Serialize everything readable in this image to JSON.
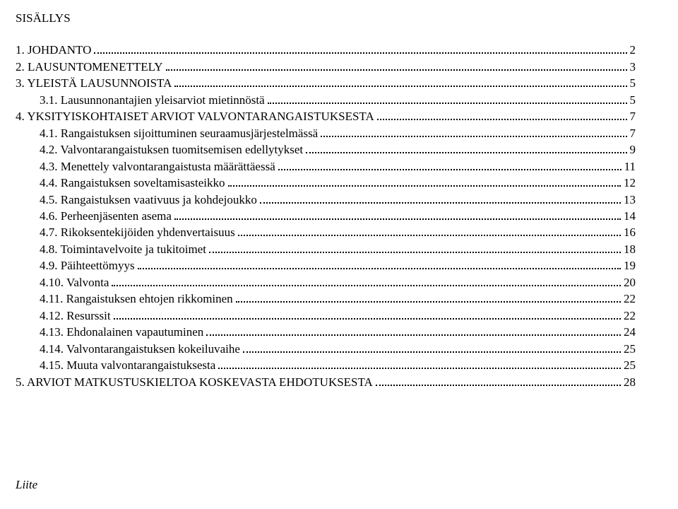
{
  "title": "SISÄLLYS",
  "footer": "Liite",
  "toc": [
    {
      "indent": 0,
      "label": "1. JOHDANTO",
      "page": "2"
    },
    {
      "indent": 0,
      "label": "2. LAUSUNTOMENETTELY",
      "page": "3"
    },
    {
      "indent": 0,
      "label": "3. YLEISTÄ LAUSUNNOISTA",
      "page": "5"
    },
    {
      "indent": 1,
      "label": "3.1. Lausunnonantajien yleisarviot mietinnöstä",
      "page": "5"
    },
    {
      "indent": 0,
      "label": "4. YKSITYISKOHTAISET ARVIOT VALVONTARANGAISTUKSESTA",
      "page": "7"
    },
    {
      "indent": 1,
      "label": "4.1. Rangaistuksen sijoittuminen seuraamusjärjestelmässä",
      "page": "7"
    },
    {
      "indent": 1,
      "label": "4.2. Valvontarangaistuksen tuomitsemisen edellytykset",
      "page": "9"
    },
    {
      "indent": 1,
      "label": "4.3. Menettely valvontarangaistusta määrättäessä",
      "page": "11"
    },
    {
      "indent": 1,
      "label": "4.4. Rangaistuksen soveltamisasteikko",
      "page": "12"
    },
    {
      "indent": 1,
      "label": "4.5. Rangaistuksen vaativuus ja kohdejoukko",
      "page": "13"
    },
    {
      "indent": 1,
      "label": "4.6. Perheenjäsenten asema",
      "page": "14"
    },
    {
      "indent": 1,
      "label": "4.7. Rikoksentekijöiden yhdenvertaisuus",
      "page": "16"
    },
    {
      "indent": 1,
      "label": "4.8. Toimintavelvoite ja tukitoimet",
      "page": "18"
    },
    {
      "indent": 1,
      "label": "4.9. Päihteettömyys",
      "page": "19"
    },
    {
      "indent": 1,
      "label": "4.10. Valvonta",
      "page": "20"
    },
    {
      "indent": 1,
      "label": "4.11. Rangaistuksen ehtojen rikkominen",
      "page": "22"
    },
    {
      "indent": 1,
      "label": "4.12. Resurssit",
      "page": "22"
    },
    {
      "indent": 1,
      "label": "4.13. Ehdonalainen vapautuminen",
      "page": "24"
    },
    {
      "indent": 1,
      "label": "4.14. Valvontarangaistuksen kokeiluvaihe",
      "page": "25"
    },
    {
      "indent": 1,
      "label": "4.15. Muuta valvontarangaistuksesta",
      "page": "25"
    },
    {
      "indent": 0,
      "label": "5. ARVIOT MATKUSTUSKIELTOA KOSKEVASTA EHDOTUKSESTA",
      "page": "28"
    }
  ],
  "colors": {
    "text": "#000000",
    "background": "#ffffff"
  },
  "typography": {
    "font_family": "Times New Roman",
    "font_size_pt": 13
  }
}
